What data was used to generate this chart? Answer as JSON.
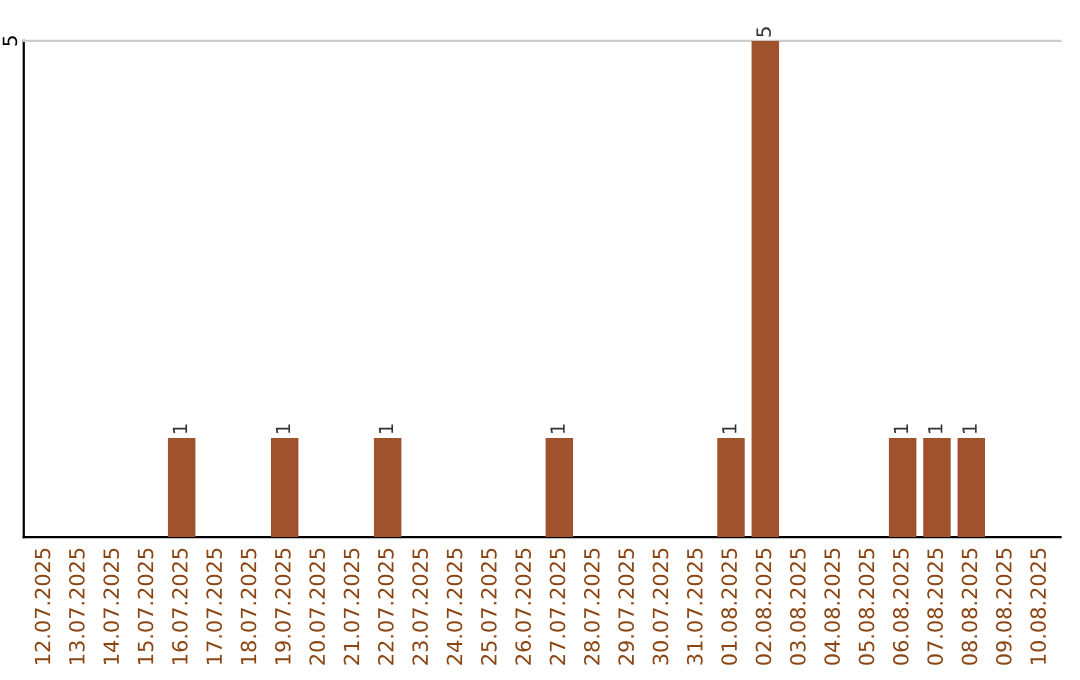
{
  "chart_data": {
    "type": "bar",
    "categories": [
      "12.07.2025",
      "13.07.2025",
      "14.07.2025",
      "15.07.2025",
      "16.07.2025",
      "17.07.2025",
      "18.07.2025",
      "19.07.2025",
      "20.07.2025",
      "21.07.2025",
      "22.07.2025",
      "23.07.2025",
      "24.07.2025",
      "25.07.2025",
      "26.07.2025",
      "27.07.2025",
      "28.07.2025",
      "29.07.2025",
      "30.07.2025",
      "31.07.2025",
      "01.08.2025",
      "02.08.2025",
      "03.08.2025",
      "04.08.2025",
      "05.08.2025",
      "06.08.2025",
      "07.08.2025",
      "08.08.2025",
      "09.08.2025",
      "10.08.2025"
    ],
    "values": [
      0,
      0,
      0,
      0,
      1,
      0,
      0,
      1,
      0,
      0,
      1,
      0,
      0,
      0,
      0,
      1,
      0,
      0,
      0,
      0,
      1,
      5,
      0,
      0,
      0,
      1,
      1,
      1,
      0,
      0
    ],
    "value_labels": [
      null,
      null,
      null,
      null,
      "1",
      null,
      null,
      "1",
      null,
      null,
      "1",
      null,
      null,
      null,
      null,
      "1",
      null,
      null,
      null,
      null,
      "1",
      "5",
      null,
      null,
      null,
      "1",
      "1",
      "1",
      null,
      null
    ],
    "color": "#a0522d",
    "ylim": [
      0,
      5
    ],
    "yticks": [
      5
    ],
    "legend": false
  }
}
